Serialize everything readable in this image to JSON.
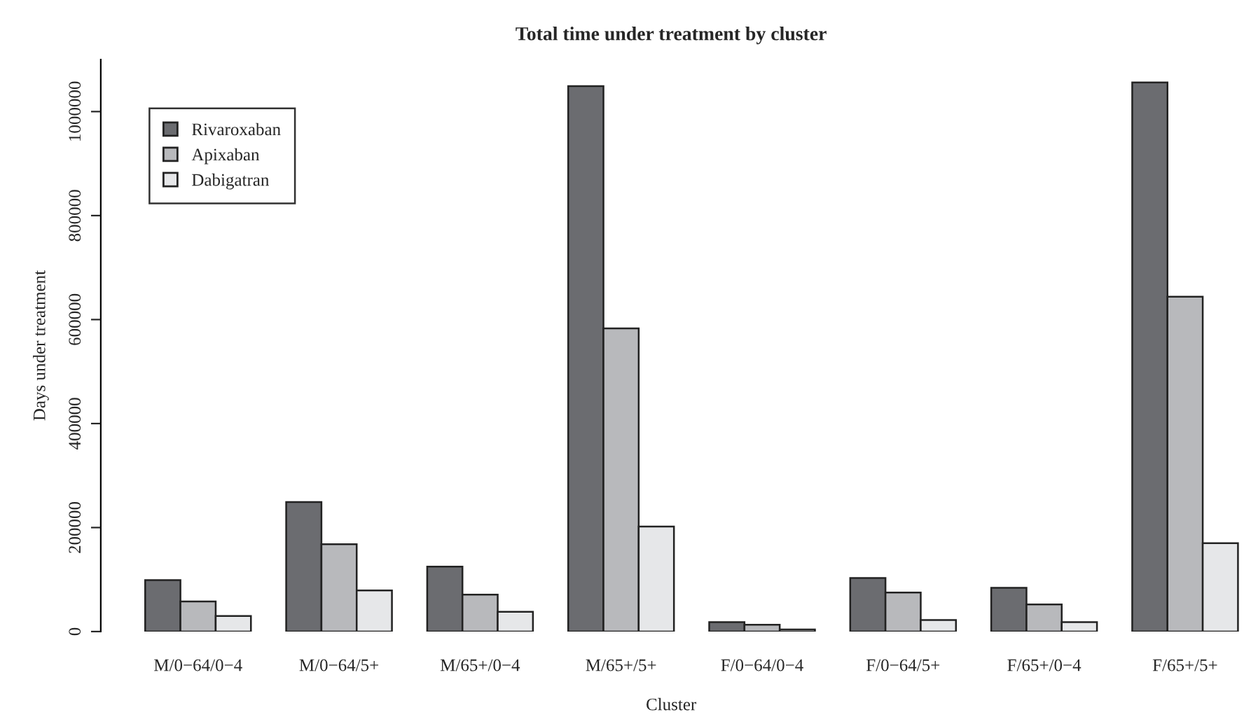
{
  "chart_data": {
    "type": "bar",
    "title": "Total time under treatment by cluster",
    "xlabel": "Cluster",
    "ylabel": "Days under treatment",
    "categories": [
      "M/0−64/0−4",
      "M/0−64/5+",
      "M/65+/0−4",
      "M/65+/5+",
      "F/0−64/0−4",
      "F/0−64/5+",
      "F/65+/0−4",
      "F/65+/5+"
    ],
    "series": [
      {
        "name": "Rivaroxaban",
        "color": "#6b6c70",
        "values": [
          99000,
          249000,
          125000,
          1049000,
          18000,
          103000,
          84000,
          1056000
        ]
      },
      {
        "name": "Apixaban",
        "color": "#b8b9bc",
        "values": [
          58000,
          168000,
          71000,
          583000,
          13000,
          75000,
          52000,
          644000
        ]
      },
      {
        "name": "Dabigatran",
        "color": "#e6e7e9",
        "values": [
          30000,
          79000,
          38000,
          202000,
          4000,
          22000,
          18000,
          170000
        ]
      }
    ],
    "ylim": [
      0,
      1100000
    ],
    "yticks": [
      0,
      200000,
      400000,
      600000,
      800000,
      1000000
    ],
    "grid": false,
    "legend": "top left"
  }
}
